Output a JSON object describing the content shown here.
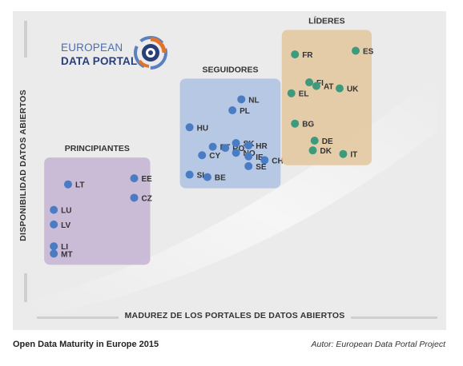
{
  "caption": {
    "title": "Open Data Maturity in Europe 2015",
    "author": "Autor: European Data Portal Project"
  },
  "logo": {
    "line1": "EUROPEAN",
    "line2": "DATA PORTAL"
  },
  "chart_data": {
    "type": "scatter",
    "xlabel": "MADUREZ DE LOS PORTALES DE DATOS ABIERTOS",
    "ylabel": "DISPONIBILIDAD DATOS ABIERTOS",
    "xlim": [
      0,
      100
    ],
    "ylim": [
      0,
      100
    ],
    "grid": false,
    "groups": [
      {
        "name": "PRINCIPIANTES",
        "box_color": "#c4b3d3",
        "point_color": "#4a7cc4",
        "points": [
          {
            "label": "LT",
            "x": 6.5,
            "y": 44.5
          },
          {
            "label": "EE",
            "x": 25,
            "y": 47
          },
          {
            "label": "CZ",
            "x": 25,
            "y": 39
          },
          {
            "label": "LU",
            "x": 2.5,
            "y": 34
          },
          {
            "label": "LV",
            "x": 2.5,
            "y": 28
          },
          {
            "label": "LI",
            "x": 2.5,
            "y": 19
          },
          {
            "label": "MT",
            "x": 2.5,
            "y": 16
          }
        ]
      },
      {
        "name": "SEGUIDORES",
        "box_color": "#aec2e3",
        "point_color": "#4a7cc4",
        "points": [
          {
            "label": "NL",
            "x": 55,
            "y": 79.5
          },
          {
            "label": "PL",
            "x": 52.5,
            "y": 75
          },
          {
            "label": "HU",
            "x": 40.5,
            "y": 68
          },
          {
            "label": "PT",
            "x": 47,
            "y": 60
          },
          {
            "label": "RO",
            "x": 50.5,
            "y": 59.5
          },
          {
            "label": "SK",
            "x": 53.5,
            "y": 61.5
          },
          {
            "label": "CY",
            "x": 44,
            "y": 56.5
          },
          {
            "label": "HR",
            "x": 57,
            "y": 60.5
          },
          {
            "label": "NO",
            "x": 53.5,
            "y": 57.5
          },
          {
            "label": "IE",
            "x": 57,
            "y": 56
          },
          {
            "label": "CH",
            "x": 61.5,
            "y": 54.5
          },
          {
            "label": "SE",
            "x": 57,
            "y": 52
          },
          {
            "label": "SI",
            "x": 40.5,
            "y": 48.5
          },
          {
            "label": "BE",
            "x": 45.5,
            "y": 47.5
          }
        ]
      },
      {
        "name": "LÍDERES",
        "box_color": "#e3c79e",
        "point_color": "#3f9a7c",
        "points": [
          {
            "label": "FR",
            "x": 70,
            "y": 98
          },
          {
            "label": "ES",
            "x": 87,
            "y": 99.5
          },
          {
            "label": "FI",
            "x": 74,
            "y": 86.5
          },
          {
            "label": "AT",
            "x": 76,
            "y": 85
          },
          {
            "label": "UK",
            "x": 82.5,
            "y": 84
          },
          {
            "label": "EL",
            "x": 69,
            "y": 82
          },
          {
            "label": "BG",
            "x": 70,
            "y": 69.5
          },
          {
            "label": "DE",
            "x": 75.5,
            "y": 62.5
          },
          {
            "label": "DK",
            "x": 75,
            "y": 58.5
          },
          {
            "label": "IT",
            "x": 83.5,
            "y": 57
          }
        ]
      }
    ]
  }
}
